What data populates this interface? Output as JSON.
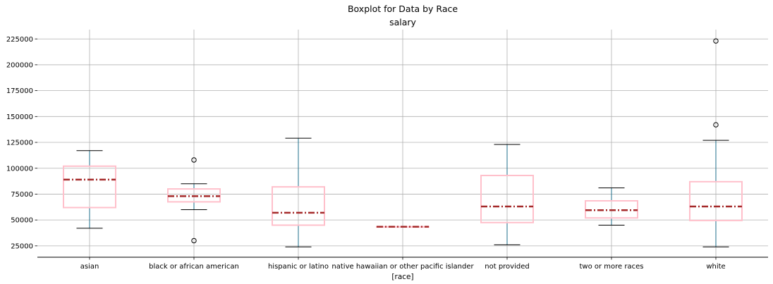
{
  "chart_data": {
    "type": "boxplot",
    "suptitle": "Boxplot for Data by Race",
    "title": "salary",
    "xlabel": "[race]",
    "ylabel": "",
    "ylim": [
      14000,
      234000
    ],
    "yticks": [
      25000,
      50000,
      75000,
      100000,
      125000,
      150000,
      175000,
      200000,
      225000
    ],
    "ytick_labels": [
      "25000",
      "50000",
      "75000",
      "100000",
      "125000",
      "150000",
      "175000",
      "200000",
      "225000"
    ],
    "grid": true,
    "colors": {
      "box": "#ffc0cb",
      "median": "#a52a2a",
      "whisker": "#1f6f8b",
      "cap": "#000000",
      "grid": "#b0b0b0"
    },
    "categories": [
      "asian",
      "black or african american",
      "hispanic or latino",
      "native hawaiian or other pacific islander",
      "not provided",
      "two or more races",
      "white"
    ],
    "boxes": [
      {
        "whislo": 42000,
        "q1": 62000,
        "med": 89000,
        "q3": 102000,
        "whishi": 117000,
        "fliers": []
      },
      {
        "whislo": 60000,
        "q1": 67500,
        "med": 73000,
        "q3": 80000,
        "whishi": 85000,
        "fliers": [
          108000,
          30000
        ]
      },
      {
        "whislo": 24000,
        "q1": 45000,
        "med": 57000,
        "q3": 82000,
        "whishi": 129000,
        "fliers": []
      },
      {
        "whislo": 43500,
        "q1": 43500,
        "med": 43500,
        "q3": 43500,
        "whishi": 43500,
        "fliers": []
      },
      {
        "whislo": 26000,
        "q1": 47500,
        "med": 63000,
        "q3": 93000,
        "whishi": 123000,
        "fliers": []
      },
      {
        "whislo": 45000,
        "q1": 52000,
        "med": 59500,
        "q3": 68500,
        "whishi": 81000,
        "fliers": []
      },
      {
        "whislo": 24000,
        "q1": 49500,
        "med": 63000,
        "q3": 87000,
        "whishi": 127000,
        "fliers": [
          142000,
          223000
        ]
      }
    ]
  }
}
